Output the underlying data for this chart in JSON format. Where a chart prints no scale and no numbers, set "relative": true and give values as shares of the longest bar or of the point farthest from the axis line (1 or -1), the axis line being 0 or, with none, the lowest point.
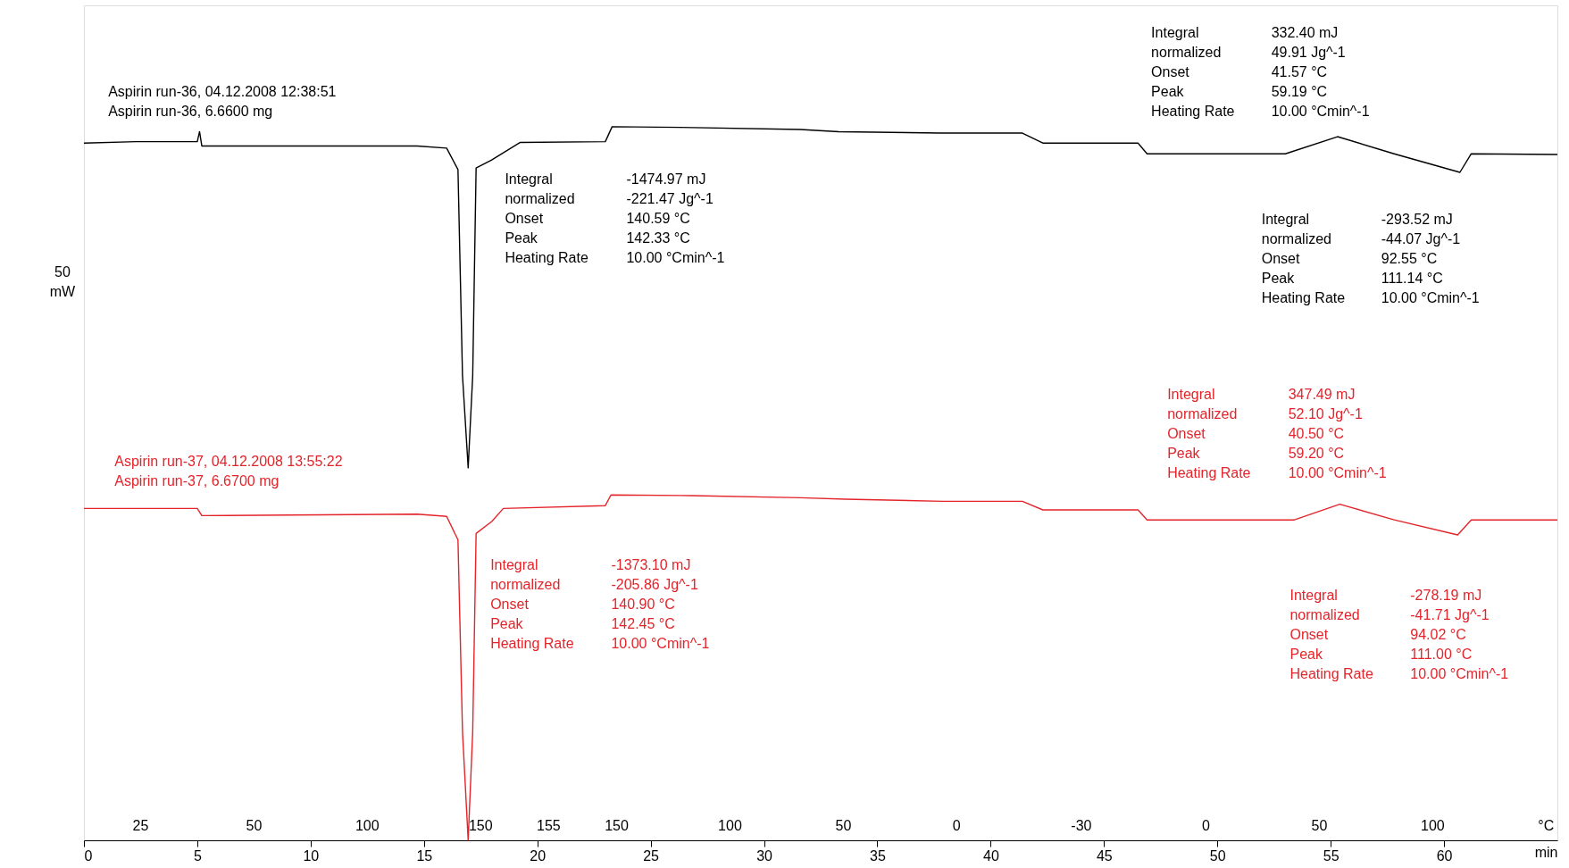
{
  "chart_data": {
    "type": "line",
    "relative": true,
    "xlabel": "min",
    "xlim": [
      0,
      65
    ],
    "xticks": [
      0,
      5,
      10,
      15,
      20,
      25,
      30,
      35,
      40,
      45,
      50,
      55,
      60
    ],
    "grid": false,
    "line_style": "solid",
    "series": [
      {
        "color": "#000000",
        "x": [
          0,
          2.3,
          5.0,
          5.1,
          5.2,
          14.3,
          14.7,
          16.0,
          16.5,
          16.7,
          16.95,
          17.15,
          17.3,
          17.97,
          19.25,
          23.0,
          23.3,
          26.3,
          31.6,
          33.3,
          37.8,
          41.4,
          42.3,
          46.5,
          46.9,
          53.0,
          55.3,
          57.8,
          60.7,
          61.2,
          65
        ],
        "values": [
          0.977,
          0.979,
          0.979,
          0.993,
          0.973,
          0.973,
          0.973,
          0.97,
          0.94,
          0.651,
          0.522,
          0.651,
          0.942,
          0.953,
          0.978,
          0.979,
          1.0,
          0.999,
          0.996,
          0.993,
          0.991,
          0.991,
          0.977,
          0.977,
          0.962,
          0.962,
          0.986,
          0.962,
          0.936,
          0.962,
          0.961
        ]
      },
      {
        "color": "#e3242b",
        "x": [
          0,
          5.0,
          5.2,
          14.7,
          16.0,
          16.5,
          16.7,
          16.95,
          17.15,
          17.3,
          18.0,
          18.5,
          23.0,
          23.25,
          26.8,
          31.6,
          33.6,
          37.9,
          41.4,
          42.3,
          46.5,
          46.9,
          53.4,
          55.4,
          57.8,
          60.6,
          61.2,
          65
        ],
        "values": [
          0.465,
          0.465,
          0.455,
          0.457,
          0.454,
          0.421,
          0.152,
          0,
          0.152,
          0.43,
          0.447,
          0.465,
          0.469,
          0.484,
          0.483,
          0.48,
          0.478,
          0.475,
          0.475,
          0.463,
          0.463,
          0.449,
          0.449,
          0.471,
          0.449,
          0.428,
          0.449,
          0.449
        ]
      }
    ],
    "annotations": [
      "Aspirin run-36, 04.12.2008 12:38:51\nAspirin run-36, 6.6600 mg",
      "Integral\nnormalized\nOnset\nPeak\nHeating Rate",
      "-1474.97 mJ\n-221.47 Jg^-1\n140.59 °C\n142.33 °C\n10.00 °Cmin^-1",
      "Integral\nnormalized\nOnset\nPeak\nHeating Rate",
      "332.40 mJ\n49.91 Jg^-1\n41.57 °C\n59.19 °C\n10.00 °Cmin^-1",
      "Integral\nnormalized\nOnset\nPeak\nHeating Rate",
      "-293.52 mJ\n-44.07 Jg^-1\n92.55 °C\n111.14 °C\n10.00 °Cmin^-1",
      "Aspirin run-37, 04.12.2008 13:55:22\nAspirin run-37, 6.6700 mg",
      "Integral\nnormalized\nOnset\nPeak\nHeating Rate",
      "-1373.10 mJ\n-205.86 Jg^-1\n140.90 °C\n142.45 °C\n10.00 °Cmin^-1",
      "Integral\nnormalized\nOnset\nPeak\nHeating Rate",
      "347.49 mJ\n52.10 Jg^-1\n40.50 °C\n59.20 °C\n10.00 °Cmin^-1",
      "Integral\nnormalized\nOnset\nPeak\nHeating Rate",
      "-278.19 mJ\n-41.71 Jg^-1\n94.02 °C\n111.00 °C\n10.00 °Cmin^-1",
      "50\nmW",
      "25",
      "50",
      "100",
      "150",
      "155",
      "150",
      "100",
      "50",
      "0",
      "-30",
      "0",
      "50",
      "100",
      "°C"
    ]
  }
}
